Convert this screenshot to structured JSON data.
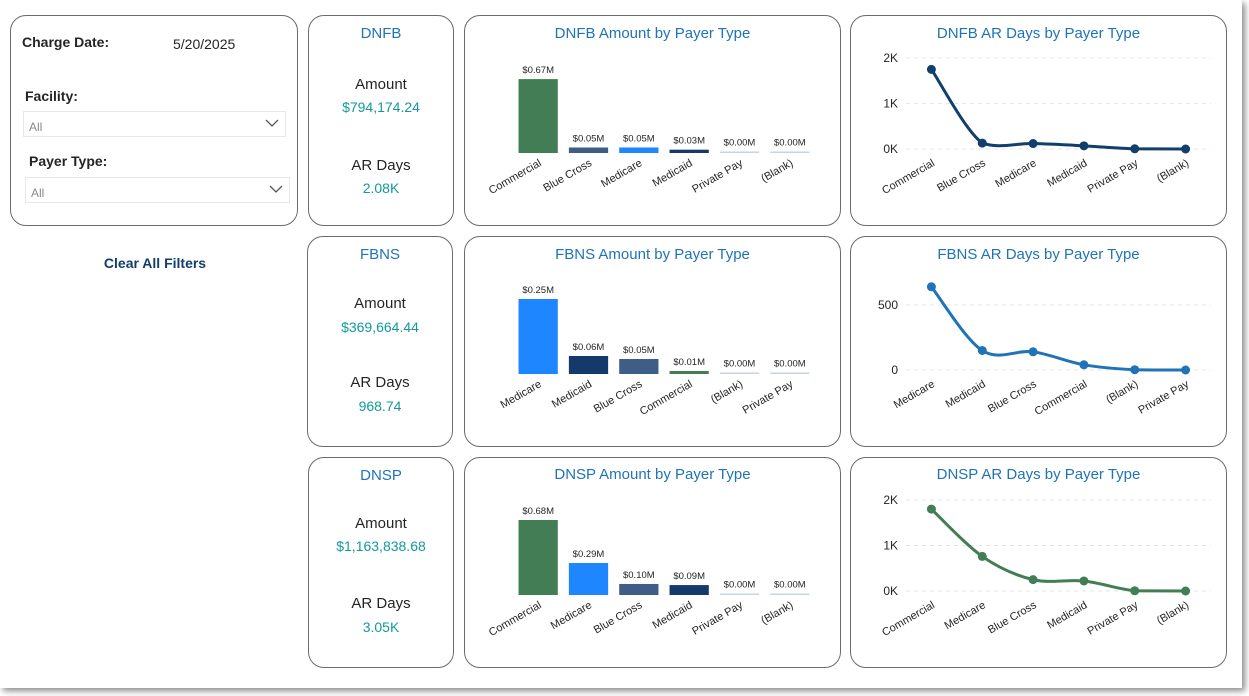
{
  "filters": {
    "charge_date_label": "Charge Date:",
    "charge_date_value": "5/20/2025",
    "facility_label": "Facility:",
    "facility_value": "All",
    "payer_type_label": "Payer Type:",
    "payer_type_value": "All",
    "clear_label": "Clear All Filters"
  },
  "kpis": [
    {
      "title": "DNFB",
      "amount_label": "Amount",
      "amount_value": "$794,174.24",
      "ar_label": "AR Days",
      "ar_value": "2.08K"
    },
    {
      "title": "FBNS",
      "amount_label": "Amount",
      "amount_value": "$369,664.44",
      "ar_label": "AR Days",
      "ar_value": "968.74"
    },
    {
      "title": "DNSP",
      "amount_label": "Amount",
      "amount_value": "$1,163,838.68",
      "ar_label": "AR Days",
      "ar_value": "3.05K"
    }
  ],
  "colors": {
    "green": "#437d55",
    "slate": "#3f5e87",
    "blue": "#1e86ff",
    "navy": "#14396b",
    "pale": "#c7d3e6",
    "line_navy": "#123e6b",
    "line_blue": "#1f73b7",
    "line_green": "#437d55"
  },
  "chart_data": [
    {
      "type": "bar",
      "title": "DNFB Amount by Payer Type",
      "categories": [
        "Commercial",
        "Blue Cross",
        "Medicare",
        "Medicaid",
        "Private Pay",
        "(Blank)"
      ],
      "values": [
        0.67,
        0.05,
        0.05,
        0.03,
        0.0,
        0.0
      ],
      "data_labels": [
        "$0.67M",
        "$0.05M",
        "$0.05M",
        "$0.03M",
        "$0.00M",
        "$0.00M"
      ],
      "bar_colors": [
        "green",
        "slate",
        "blue",
        "navy",
        "pale",
        "pale"
      ],
      "ylim": [
        0,
        0.68
      ]
    },
    {
      "type": "line",
      "title": "DNFB AR Days by Payer Type",
      "categories": [
        "Commercial",
        "Blue Cross",
        "Medicare",
        "Medicaid",
        "Private Pay",
        "(Blank)"
      ],
      "values": [
        1750,
        130,
        120,
        70,
        5,
        0
      ],
      "yticks": [
        0,
        1000,
        2000
      ],
      "ytick_labels": [
        "0K",
        "1K",
        "2K"
      ],
      "ylim": [
        0,
        2000
      ],
      "color": "line_navy"
    },
    {
      "type": "bar",
      "title": "FBNS Amount by Payer Type",
      "categories": [
        "Medicare",
        "Medicaid",
        "Blue Cross",
        "Commercial",
        "(Blank)",
        "Private Pay"
      ],
      "values": [
        0.25,
        0.06,
        0.05,
        0.01,
        0.0,
        0.0
      ],
      "data_labels": [
        "$0.25M",
        "$0.06M",
        "$0.05M",
        "$0.01M",
        "$0.00M",
        "$0.00M"
      ],
      "bar_colors": [
        "blue",
        "navy",
        "slate",
        "green",
        "pale",
        "pale"
      ],
      "ylim": [
        0,
        0.25
      ]
    },
    {
      "type": "line",
      "title": "FBNS AR Days by Payer Type",
      "categories": [
        "Medicare",
        "Medicaid",
        "Blue Cross",
        "Commercial",
        "(Blank)",
        "Private Pay"
      ],
      "values": [
        640,
        150,
        140,
        40,
        2,
        0
      ],
      "yticks": [
        0,
        500
      ],
      "ytick_labels": [
        "0",
        "500"
      ],
      "ylim": [
        0,
        700
      ],
      "color": "line_blue"
    },
    {
      "type": "bar",
      "title": "DNSP Amount by Payer Type",
      "categories": [
        "Commercial",
        "Medicare",
        "Blue Cross",
        "Medicaid",
        "Private Pay",
        "(Blank)"
      ],
      "values": [
        0.68,
        0.29,
        0.1,
        0.09,
        0.0,
        0.0
      ],
      "data_labels": [
        "$0.68M",
        "$0.29M",
        "$0.10M",
        "$0.09M",
        "$0.00M",
        "$0.00M"
      ],
      "bar_colors": [
        "green",
        "blue",
        "slate",
        "navy",
        "pale",
        "pale"
      ],
      "ylim": [
        0,
        0.68
      ]
    },
    {
      "type": "line",
      "title": "DNSP AR Days by Payer Type",
      "categories": [
        "Commercial",
        "Medicare",
        "Blue Cross",
        "Medicaid",
        "Private Pay",
        "(Blank)"
      ],
      "values": [
        1800,
        760,
        250,
        220,
        5,
        0
      ],
      "yticks": [
        0,
        1000,
        2000
      ],
      "ytick_labels": [
        "0K",
        "1K",
        "2K"
      ],
      "ylim": [
        0,
        2000
      ],
      "color": "line_green"
    }
  ]
}
